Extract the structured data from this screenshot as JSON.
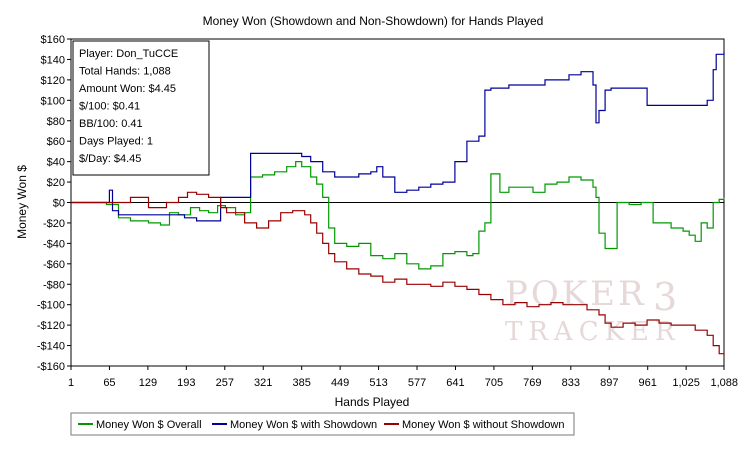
{
  "chart_data": {
    "type": "line",
    "title": "Money Won (Showdown and Non-Showdown) for Hands Played",
    "xlabel": "Hands Played",
    "ylabel": "Money Won $",
    "xlim": [
      1,
      1088
    ],
    "ylim": [
      -160,
      160
    ],
    "x_ticks": [
      1,
      65,
      129,
      193,
      257,
      321,
      385,
      449,
      513,
      577,
      641,
      705,
      769,
      833,
      897,
      961,
      1025,
      1088
    ],
    "x_tick_labels": [
      "1",
      "65",
      "129",
      "193",
      "257",
      "321",
      "385",
      "449",
      "513",
      "577",
      "641",
      "705",
      "769",
      "833",
      "897",
      "961",
      "1,025",
      "1,088"
    ],
    "y_ticks": [
      160,
      140,
      120,
      100,
      80,
      60,
      40,
      20,
      0,
      -20,
      -40,
      -60,
      -80,
      -100,
      -120,
      -140,
      -160
    ],
    "y_tick_labels": [
      "$160",
      "$140",
      "$120",
      "$100",
      "$80",
      "$60",
      "$40",
      "$20",
      "$0",
      "-$20",
      "-$40",
      "-$60",
      "-$80",
      "-$100",
      "-$120",
      "-$140",
      "-$160"
    ],
    "grid": false,
    "zero_line": true,
    "info_box": [
      "Player: Don_TuCCE",
      "Total Hands: 1,088",
      "Amount Won: $4.45",
      "$/100: $0.41",
      "BB/100: 0.41",
      "Days Played: 1",
      "$/Day: $4.45"
    ],
    "legend_position": "bottom",
    "series": [
      {
        "name": "Money Won $ Overall",
        "color": "#009900",
        "x": [
          1,
          30,
          60,
          80,
          100,
          130,
          150,
          165,
          180,
          200,
          215,
          230,
          245,
          258,
          275,
          290,
          300,
          320,
          340,
          360,
          375,
          385,
          400,
          410,
          420,
          430,
          440,
          460,
          480,
          500,
          520,
          540,
          560,
          580,
          600,
          620,
          640,
          660,
          670,
          680,
          690,
          700,
          715,
          730,
          750,
          770,
          790,
          810,
          830,
          850,
          870,
          875,
          880,
          890,
          910,
          930,
          950,
          970,
          1000,
          1020,
          1030,
          1040,
          1050,
          1060,
          1070,
          1080,
          1088
        ],
        "y": [
          0,
          0,
          -2,
          -15,
          -18,
          -20,
          -22,
          -10,
          -12,
          -5,
          -8,
          -10,
          -3,
          -5,
          -12,
          -10,
          25,
          27,
          30,
          35,
          40,
          35,
          25,
          18,
          5,
          -25,
          -40,
          -43,
          -40,
          -52,
          -55,
          -50,
          -60,
          -65,
          -62,
          -50,
          -48,
          -52,
          -50,
          -28,
          -20,
          28,
          10,
          15,
          15,
          10,
          18,
          20,
          25,
          22,
          15,
          5,
          -30,
          -45,
          0,
          -2,
          0,
          -20,
          -25,
          -28,
          -32,
          -38,
          -20,
          -25,
          0,
          3,
          5
        ]
      },
      {
        "name": "Money Won $ with Showdown",
        "color": "#000099",
        "x": [
          1,
          60,
          65,
          70,
          80,
          130,
          190,
          210,
          230,
          250,
          258,
          290,
          300,
          320,
          340,
          360,
          380,
          385,
          400,
          420,
          440,
          460,
          480,
          500,
          510,
          520,
          540,
          560,
          580,
          600,
          620,
          640,
          660,
          680,
          690,
          700,
          730,
          760,
          790,
          810,
          830,
          850,
          870,
          875,
          880,
          890,
          900,
          930,
          960,
          1000,
          1030,
          1060,
          1070,
          1075,
          1088
        ],
        "y": [
          0,
          0,
          12,
          -8,
          -12,
          -12,
          -15,
          -18,
          -18,
          5,
          5,
          5,
          48,
          48,
          48,
          48,
          48,
          45,
          40,
          30,
          25,
          25,
          28,
          30,
          35,
          25,
          10,
          12,
          15,
          18,
          20,
          40,
          60,
          65,
          110,
          112,
          115,
          115,
          120,
          120,
          125,
          128,
          115,
          78,
          90,
          110,
          112,
          112,
          95,
          95,
          95,
          100,
          130,
          145,
          148
        ]
      },
      {
        "name": "Money Won $ without Showdown",
        "color": "#990000",
        "x": [
          1,
          60,
          100,
          130,
          160,
          180,
          195,
          210,
          230,
          250,
          260,
          290,
          310,
          330,
          350,
          370,
          390,
          400,
          410,
          420,
          430,
          440,
          460,
          480,
          500,
          520,
          540,
          560,
          580,
          600,
          620,
          640,
          660,
          680,
          700,
          720,
          740,
          760,
          780,
          800,
          820,
          840,
          860,
          880,
          890,
          900,
          920,
          940,
          960,
          980,
          1000,
          1020,
          1040,
          1060,
          1070,
          1080,
          1088
        ],
        "y": [
          0,
          0,
          5,
          -5,
          0,
          5,
          10,
          8,
          5,
          -5,
          -10,
          -20,
          -25,
          -18,
          -10,
          -8,
          -12,
          -20,
          -30,
          -40,
          -50,
          -58,
          -65,
          -70,
          -72,
          -78,
          -75,
          -80,
          -80,
          -82,
          -78,
          -82,
          -85,
          -90,
          -95,
          -100,
          -98,
          -102,
          -100,
          -98,
          -100,
          -100,
          -105,
          -110,
          -118,
          -122,
          -118,
          -120,
          -115,
          -118,
          -120,
          -120,
          -125,
          -130,
          -140,
          -148,
          -145
        ]
      }
    ]
  }
}
